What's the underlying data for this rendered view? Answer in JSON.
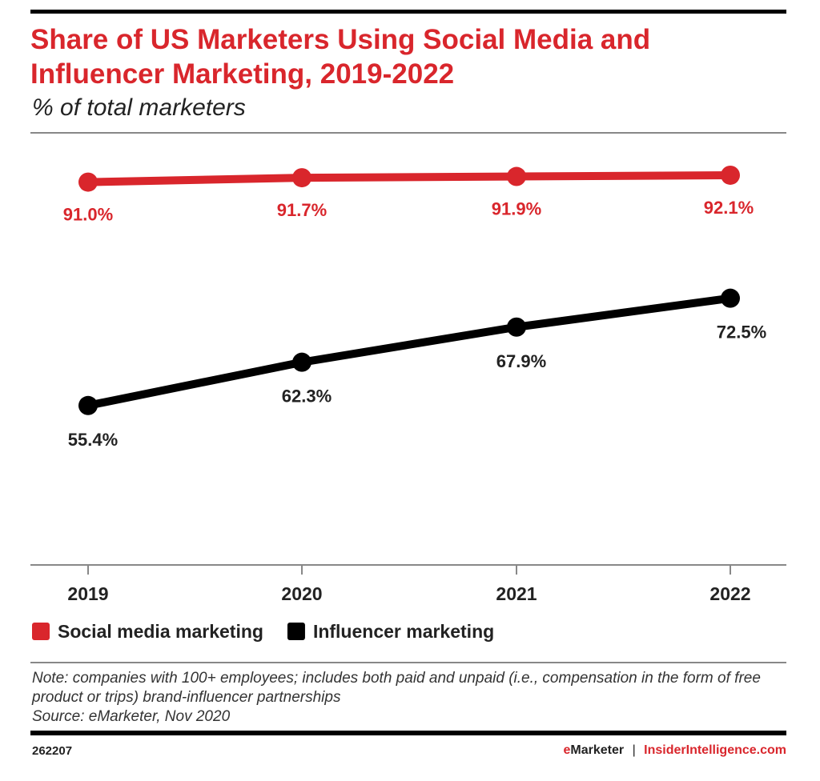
{
  "chart_data": {
    "type": "line",
    "title": "Share of US Marketers Using Social Media and Influencer Marketing, 2019-2022",
    "subtitle": "% of total marketers",
    "categories": [
      "2019",
      "2020",
      "2021",
      "2022"
    ],
    "series": [
      {
        "name": "Social media marketing",
        "color": "#d9262c",
        "values": [
          91.0,
          91.7,
          91.9,
          92.1
        ],
        "labels": [
          "91.0%",
          "91.7%",
          "91.9%",
          "92.1%"
        ]
      },
      {
        "name": "Influencer marketing",
        "color": "#000000",
        "values": [
          55.4,
          62.3,
          67.9,
          72.5
        ],
        "labels": [
          "55.4%",
          "62.3%",
          "67.9%",
          "72.5%"
        ]
      }
    ],
    "ylim": [
      30,
      100
    ],
    "grid": false,
    "legend_placement": "bottom-left"
  },
  "notes": {
    "note": "Note: companies with 100+ employees; includes both paid and unpaid (i.e., compensation in the form of free product or trips) brand-influencer partnerships",
    "source": "Source: eMarketer, Nov 2020"
  },
  "footer": {
    "chart_id": "262207",
    "brand_e": "e",
    "brand_rest": "Marketer",
    "separator": "|",
    "site": "InsiderIntelligence.com"
  }
}
